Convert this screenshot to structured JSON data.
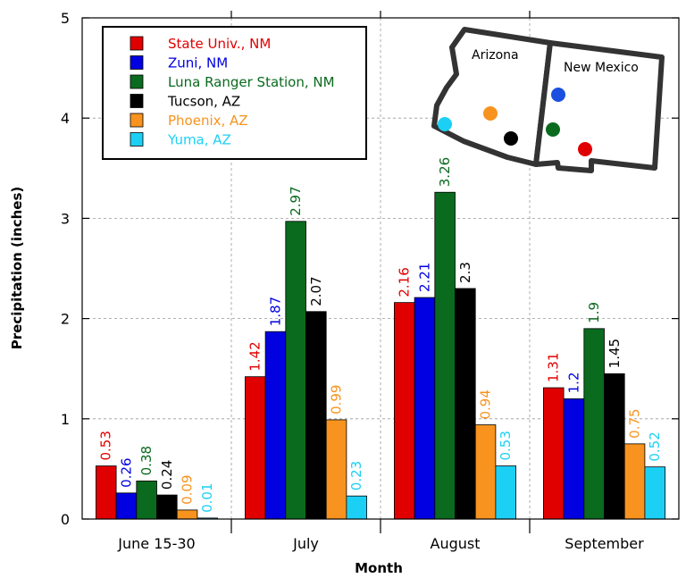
{
  "chart_data": {
    "type": "bar",
    "xlabel": "Month",
    "ylabel": "Precipitation (inches)",
    "ylim": [
      0,
      5
    ],
    "yticks": [
      "0",
      "1",
      "2",
      "3",
      "4",
      "5"
    ],
    "grid": true,
    "legend_position": "top-left",
    "categories": [
      "June 15-30",
      "July",
      "August",
      "September"
    ],
    "series": [
      {
        "name": "State Univ., NM",
        "color": "#e00000",
        "values": [
          0.53,
          1.42,
          2.16,
          1.31
        ],
        "labels": [
          "0.53",
          "1.42",
          "2.16",
          "1.31"
        ]
      },
      {
        "name": "Zuni, NM",
        "color": "#0000e0",
        "values": [
          0.26,
          1.87,
          2.21,
          1.2
        ],
        "labels": [
          "0.26",
          "1.87",
          "2.21",
          "1.2"
        ]
      },
      {
        "name": "Luna Ranger Station, NM",
        "color": "#0a6a1e",
        "values": [
          0.38,
          2.97,
          3.26,
          1.9
        ],
        "labels": [
          "0.38",
          "2.97",
          "3.26",
          "1.9"
        ]
      },
      {
        "name": "Tucson, AZ",
        "color": "#000000",
        "values": [
          0.24,
          2.07,
          2.3,
          1.45
        ],
        "labels": [
          "0.24",
          "2.07",
          "2.3",
          "1.45"
        ]
      },
      {
        "name": "Phoenix, AZ",
        "color": "#f7931e",
        "values": [
          0.09,
          0.99,
          0.94,
          0.75
        ],
        "labels": [
          "0.09",
          "0.99",
          "0.94",
          "0.75"
        ]
      },
      {
        "name": "Yuma, AZ",
        "color": "#1cd0f5",
        "values": [
          0.01,
          0.23,
          0.53,
          0.52
        ],
        "labels": [
          "0.01",
          "0.23",
          "0.53",
          "0.52"
        ]
      }
    ]
  },
  "map": {
    "state_labels": [
      "Arizona",
      "New Mexico"
    ],
    "station_colors": [
      "#e00000",
      "#1a4fe0",
      "#0a6a1e",
      "#000000",
      "#f7931e",
      "#1cd0f5"
    ]
  }
}
